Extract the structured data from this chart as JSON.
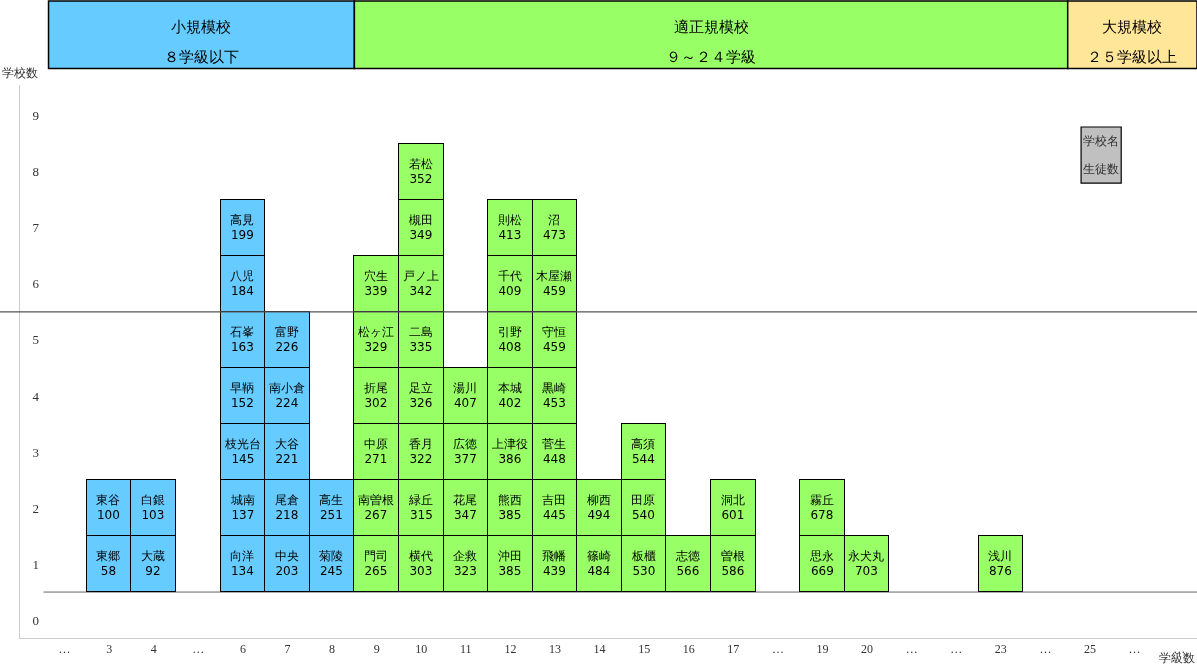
{
  "chart_data": {
    "type": "bar",
    "stacked": true,
    "xlabel": "学級数",
    "ylabel": "学校数",
    "categories": [
      "…",
      "3",
      "4",
      "…",
      "6",
      "7",
      "8",
      "9",
      "10",
      "11",
      "12",
      "13",
      "14",
      "15",
      "16",
      "17",
      "…",
      "19",
      "20",
      "…",
      "…",
      "23",
      "…",
      "25",
      "…",
      "…"
    ],
    "series": [
      {
        "values": [
          null,
          1,
          1,
          null,
          1,
          1,
          1,
          1,
          1,
          1,
          1,
          1,
          1,
          1,
          1,
          1,
          null,
          1,
          1,
          null,
          null,
          1,
          null,
          null,
          null,
          null
        ],
        "value_labels": [
          null,
          "東郷\n58",
          "大蔵\n92",
          null,
          "向洋\n134",
          "中央\n203",
          "菊陵\n245",
          "門司\n265",
          "横代\n303",
          "企救\n323",
          "沖田\n385",
          "飛幡\n439",
          "篠崎\n484",
          "板櫃\n530",
          "志徳\n566",
          "曽根\n586",
          null,
          "思永\n669",
          "永犬丸\n703",
          null,
          null,
          "浅川\n876",
          null,
          null,
          null,
          null
        ],
        "colors": [
          null,
          "#66ccff",
          "#66ccff",
          null,
          "#66ccff",
          "#66ccff",
          "#66ccff",
          "#99ff66",
          "#99ff66",
          "#99ff66",
          "#99ff66",
          "#99ff66",
          "#99ff66",
          "#99ff66",
          "#99ff66",
          "#99ff66",
          null,
          "#99ff66",
          "#99ff66",
          null,
          null,
          "#99ff66",
          null,
          null,
          null,
          null
        ]
      },
      {
        "values": [
          null,
          1,
          1,
          null,
          1,
          1,
          1,
          1,
          1,
          1,
          1,
          1,
          1,
          1,
          null,
          1,
          null,
          1,
          null,
          null,
          null,
          null,
          null,
          null,
          null,
          null
        ],
        "value_labels": [
          null,
          "東谷\n100",
          "白銀\n103",
          null,
          "城南\n137",
          "尾倉\n218",
          "高生\n251",
          "南曽根\n267",
          "緑丘\n315",
          "花尾\n347",
          "熊西\n385",
          "吉田\n445",
          "柳西\n494",
          "田原\n540",
          null,
          "洞北\n601",
          null,
          "霧丘\n678",
          null,
          null,
          null,
          null,
          null,
          null,
          null,
          null
        ],
        "colors": [
          null,
          "#66ccff",
          "#66ccff",
          null,
          "#66ccff",
          "#66ccff",
          "#66ccff",
          "#99ff66",
          "#99ff66",
          "#99ff66",
          "#99ff66",
          "#99ff66",
          "#99ff66",
          "#99ff66",
          null,
          "#99ff66",
          null,
          "#99ff66",
          null,
          null,
          null,
          null,
          null,
          null,
          null,
          null
        ]
      },
      {
        "values": [
          null,
          null,
          null,
          null,
          1,
          1,
          null,
          1,
          1,
          1,
          1,
          1,
          null,
          1,
          null,
          null,
          null,
          null,
          null,
          null,
          null,
          null,
          null,
          null,
          null,
          null
        ],
        "value_labels": [
          null,
          null,
          null,
          null,
          "枝光台\n145",
          "大谷\n221",
          null,
          "中原\n271",
          "香月\n322",
          "広徳\n377",
          "上津役\n386",
          "菅生\n448",
          null,
          "高須\n544",
          null,
          null,
          null,
          null,
          null,
          null,
          null,
          null,
          null,
          null,
          null,
          null
        ],
        "colors": [
          null,
          null,
          null,
          null,
          "#66ccff",
          "#66ccff",
          null,
          "#99ff66",
          "#99ff66",
          "#99ff66",
          "#99ff66",
          "#99ff66",
          null,
          "#99ff66",
          null,
          null,
          null,
          null,
          null,
          null,
          null,
          null,
          null,
          null,
          null,
          null
        ]
      },
      {
        "values": [
          null,
          null,
          null,
          null,
          1,
          1,
          null,
          1,
          1,
          1,
          1,
          1,
          null,
          null,
          null,
          null,
          null,
          null,
          null,
          null,
          null,
          null,
          null,
          null,
          null,
          null
        ],
        "value_labels": [
          null,
          null,
          null,
          null,
          "早鞆\n152",
          "南小倉\n224",
          null,
          "折尾\n302",
          "足立\n326",
          "湯川\n407",
          "本城\n402",
          "黒崎\n453",
          null,
          null,
          null,
          null,
          null,
          null,
          null,
          null,
          null,
          null,
          null,
          null,
          null,
          null
        ],
        "colors": [
          null,
          null,
          null,
          null,
          "#66ccff",
          "#66ccff",
          null,
          "#99ff66",
          "#99ff66",
          "#99ff66",
          "#99ff66",
          "#99ff66",
          null,
          null,
          null,
          null,
          null,
          null,
          null,
          null,
          null,
          null,
          null,
          null,
          null,
          null
        ]
      },
      {
        "values": [
          null,
          null,
          null,
          null,
          1,
          1,
          null,
          1,
          1,
          null,
          1,
          1,
          null,
          null,
          null,
          null,
          null,
          null,
          null,
          null,
          null,
          null,
          null,
          null,
          null,
          null
        ],
        "value_labels": [
          null,
          null,
          null,
          null,
          "石峯\n163",
          "富野\n226",
          null,
          "松ヶ江\n329",
          "二島\n335",
          null,
          "引野\n408",
          "守恒\n459",
          null,
          null,
          null,
          null,
          null,
          null,
          null,
          null,
          null,
          null,
          null,
          null,
          null,
          null
        ],
        "colors": [
          null,
          null,
          null,
          null,
          "#66ccff",
          "#66ccff",
          null,
          "#99ff66",
          "#99ff66",
          null,
          "#99ff66",
          "#99ff66",
          null,
          null,
          null,
          null,
          null,
          null,
          null,
          null,
          null,
          null,
          null,
          null,
          null,
          null
        ]
      },
      {
        "values": [
          null,
          null,
          null,
          null,
          1,
          null,
          null,
          1,
          1,
          null,
          1,
          1,
          null,
          null,
          null,
          null,
          null,
          null,
          null,
          null,
          null,
          null,
          null,
          null,
          null,
          null
        ],
        "value_labels": [
          null,
          null,
          null,
          null,
          "八児\n184",
          null,
          null,
          "穴生\n339",
          "戸ノ上\n342",
          null,
          "千代\n409",
          "木屋瀬\n459",
          null,
          null,
          null,
          null,
          null,
          null,
          null,
          null,
          null,
          null,
          null,
          null,
          null,
          null
        ],
        "colors": [
          null,
          null,
          null,
          null,
          "#66ccff",
          null,
          null,
          "#99ff66",
          "#99ff66",
          null,
          "#99ff66",
          "#99ff66",
          null,
          null,
          null,
          null,
          null,
          null,
          null,
          null,
          null,
          null,
          null,
          null,
          null,
          null
        ]
      },
      {
        "values": [
          null,
          null,
          null,
          null,
          1,
          null,
          null,
          null,
          1,
          null,
          1,
          1,
          null,
          null,
          null,
          null,
          null,
          null,
          null,
          null,
          null,
          null,
          null,
          null,
          null,
          null
        ],
        "value_labels": [
          null,
          null,
          null,
          null,
          "高見\n199",
          null,
          null,
          null,
          "槻田\n349",
          null,
          "則松\n413",
          "沼\n473",
          null,
          null,
          null,
          null,
          null,
          null,
          null,
          null,
          null,
          null,
          null,
          null,
          null,
          null
        ],
        "colors": [
          null,
          null,
          null,
          null,
          "#66ccff",
          null,
          null,
          null,
          "#99ff66",
          null,
          "#99ff66",
          "#99ff66",
          null,
          null,
          null,
          null,
          null,
          null,
          null,
          null,
          null,
          null,
          null,
          null,
          null,
          null
        ]
      },
      {
        "values": [
          null,
          null,
          null,
          null,
          null,
          null,
          null,
          null,
          1,
          null,
          null,
          null,
          null,
          null,
          null,
          null,
          null,
          null,
          null,
          null,
          null,
          null,
          null,
          null,
          null,
          null
        ],
        "value_labels": [
          null,
          null,
          null,
          null,
          null,
          null,
          null,
          null,
          "若松\n352",
          null,
          null,
          null,
          null,
          null,
          null,
          null,
          null,
          null,
          null,
          null,
          null,
          null,
          null,
          null,
          null,
          null
        ],
        "colors": [
          null,
          null,
          null,
          null,
          null,
          null,
          null,
          null,
          "#99ff66",
          null,
          null,
          null,
          null,
          null,
          null,
          null,
          null,
          null,
          null,
          null,
          null,
          null,
          null,
          null,
          null,
          null
        ]
      }
    ],
    "ylim": [
      -0.82,
      9.05
    ],
    "yticks": [
      {
        "value": -0.5,
        "label": "0"
      },
      {
        "value": 0.5,
        "label": "1"
      },
      {
        "value": 1.5,
        "label": "2"
      },
      {
        "value": 2.5,
        "label": "3"
      },
      {
        "value": 3.5,
        "label": "4"
      },
      {
        "value": 4.5,
        "label": "5"
      },
      {
        "value": 5.5,
        "label": "6"
      },
      {
        "value": 6.5,
        "label": "7"
      },
      {
        "value": 7.5,
        "label": "8"
      },
      {
        "value": 8.5,
        "label": "9"
      }
    ],
    "ref_lines": [
      {
        "axis": "y",
        "value": 5,
        "color": "#555555"
      }
    ],
    "annotations": [
      "小規模校",
      "８学級以下",
      "適正規模校",
      "９～２４学級",
      "大規模校",
      "２５学級以上",
      "学校名",
      "生徒数"
    ],
    "legend": false,
    "grid": false
  }
}
